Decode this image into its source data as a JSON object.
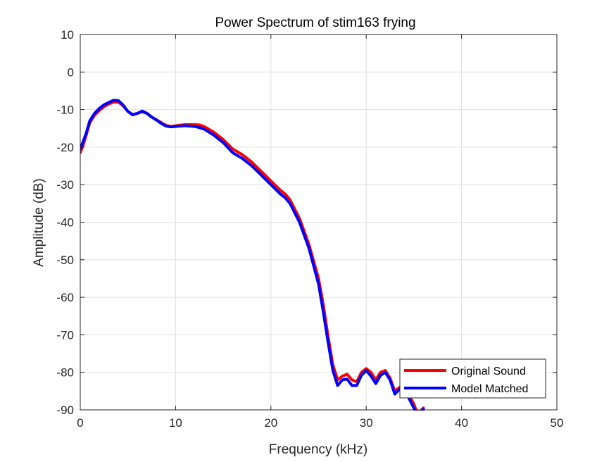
{
  "chart_data": {
    "type": "line",
    "title": "Power Spectrum of stim163 frying",
    "xlabel": "Frequency (kHz)",
    "ylabel": "Amplitude (dB)",
    "xlim": [
      0,
      50
    ],
    "ylim": [
      -90,
      10
    ],
    "xticks": [
      0,
      10,
      20,
      30,
      40,
      50
    ],
    "yticks": [
      10,
      0,
      -10,
      -20,
      -30,
      -40,
      -50,
      -60,
      -70,
      -80,
      -90
    ],
    "xtick_labels": [
      "0",
      "10",
      "20",
      "30",
      "40",
      "50"
    ],
    "ytick_labels": [
      "10",
      "0",
      "-10",
      "-20",
      "-30",
      "-40",
      "-50",
      "-60",
      "-70",
      "-80",
      "-90"
    ],
    "grid": true,
    "legend_position": "bottom-right",
    "series": [
      {
        "name": "Original Sound",
        "color": "#ff0000",
        "points": [
          [
            0,
            -21.5
          ],
          [
            0.3,
            -19.5
          ],
          [
            0.6,
            -17
          ],
          [
            1,
            -13.5
          ],
          [
            1.5,
            -11.5
          ],
          [
            2,
            -10.2
          ],
          [
            2.5,
            -9.2
          ],
          [
            3,
            -8.5
          ],
          [
            3.5,
            -8.0
          ],
          [
            4,
            -8.0
          ],
          [
            4.5,
            -9.0
          ],
          [
            5,
            -10.5
          ],
          [
            5.5,
            -11.3
          ],
          [
            6,
            -11.0
          ],
          [
            6.5,
            -10.6
          ],
          [
            7,
            -11.0
          ],
          [
            7.5,
            -12.0
          ],
          [
            8,
            -12.7
          ],
          [
            8.5,
            -13.5
          ],
          [
            9,
            -14.2
          ],
          [
            9.5,
            -14.5
          ],
          [
            10,
            -14.3
          ],
          [
            11,
            -14.0
          ],
          [
            12,
            -14.0
          ],
          [
            12.5,
            -14.1
          ],
          [
            13,
            -14.5
          ],
          [
            14,
            -16.0
          ],
          [
            15,
            -18.0
          ],
          [
            16,
            -20.5
          ],
          [
            17,
            -22.0
          ],
          [
            18,
            -24.0
          ],
          [
            19,
            -26.5
          ],
          [
            20,
            -29.0
          ],
          [
            21,
            -31.5
          ],
          [
            21.5,
            -32.5
          ],
          [
            22,
            -34.0
          ],
          [
            23,
            -39.0
          ],
          [
            24,
            -46.0
          ],
          [
            25,
            -55.0
          ],
          [
            25.5,
            -62.0
          ],
          [
            26,
            -70.5
          ],
          [
            26.5,
            -78.0
          ],
          [
            27,
            -82.0
          ],
          [
            27.5,
            -81.0
          ],
          [
            28,
            -80.5
          ],
          [
            28.5,
            -82.0
          ],
          [
            29,
            -82.5
          ],
          [
            29.5,
            -80.0
          ],
          [
            30,
            -79.0
          ],
          [
            30.5,
            -80.0
          ],
          [
            31,
            -82.0
          ],
          [
            31.5,
            -80.0
          ],
          [
            32,
            -79.5
          ],
          [
            32.5,
            -81.5
          ],
          [
            33,
            -85.0
          ],
          [
            33.5,
            -84.0
          ],
          [
            34,
            -83.0
          ],
          [
            34.5,
            -86.0
          ],
          [
            35,
            -88.5
          ],
          [
            35.3,
            -90.5
          ],
          [
            35.6,
            -90.5
          ],
          [
            36,
            -89.5
          ]
        ]
      },
      {
        "name": "Model Matched",
        "color": "#0000ff",
        "points": [
          [
            0,
            -20.5
          ],
          [
            0.3,
            -18.5
          ],
          [
            0.6,
            -16.5
          ],
          [
            1,
            -13.0
          ],
          [
            1.5,
            -11.0
          ],
          [
            2,
            -9.7
          ],
          [
            2.5,
            -8.7
          ],
          [
            3,
            -8.1
          ],
          [
            3.5,
            -7.5
          ],
          [
            4,
            -7.6
          ],
          [
            4.5,
            -8.8
          ],
          [
            5,
            -10.5
          ],
          [
            5.5,
            -11.4
          ],
          [
            6,
            -11.0
          ],
          [
            6.5,
            -10.4
          ],
          [
            7,
            -11.0
          ],
          [
            7.5,
            -12.0
          ],
          [
            8,
            -12.8
          ],
          [
            8.5,
            -13.7
          ],
          [
            9,
            -14.4
          ],
          [
            9.5,
            -14.6
          ],
          [
            10,
            -14.5
          ],
          [
            11,
            -14.3
          ],
          [
            12,
            -14.5
          ],
          [
            12.5,
            -14.8
          ],
          [
            13,
            -15.2
          ],
          [
            14,
            -16.8
          ],
          [
            15,
            -18.8
          ],
          [
            16,
            -21.5
          ],
          [
            17,
            -23.0
          ],
          [
            18,
            -25.0
          ],
          [
            19,
            -27.5
          ],
          [
            20,
            -30.0
          ],
          [
            21,
            -32.5
          ],
          [
            21.5,
            -33.5
          ],
          [
            22,
            -35.0
          ],
          [
            23,
            -40.0
          ],
          [
            24,
            -47.0
          ],
          [
            25,
            -56.5
          ],
          [
            25.5,
            -64.0
          ],
          [
            26,
            -72.0
          ],
          [
            26.5,
            -79.5
          ],
          [
            27,
            -83.5
          ],
          [
            27.5,
            -82.0
          ],
          [
            28,
            -81.8
          ],
          [
            28.5,
            -83.5
          ],
          [
            29,
            -83.5
          ],
          [
            29.5,
            -80.8
          ],
          [
            30,
            -79.5
          ],
          [
            30.5,
            -81.0
          ],
          [
            31,
            -83.0
          ],
          [
            31.5,
            -80.8
          ],
          [
            32,
            -80.0
          ],
          [
            32.5,
            -82.0
          ],
          [
            33,
            -85.8
          ],
          [
            33.5,
            -84.5
          ],
          [
            34,
            -83.8
          ],
          [
            34.5,
            -87.0
          ],
          [
            35,
            -89.5
          ],
          [
            35.3,
            -91.0
          ],
          [
            35.6,
            -90.8
          ],
          [
            36,
            -89.8
          ]
        ]
      }
    ]
  }
}
